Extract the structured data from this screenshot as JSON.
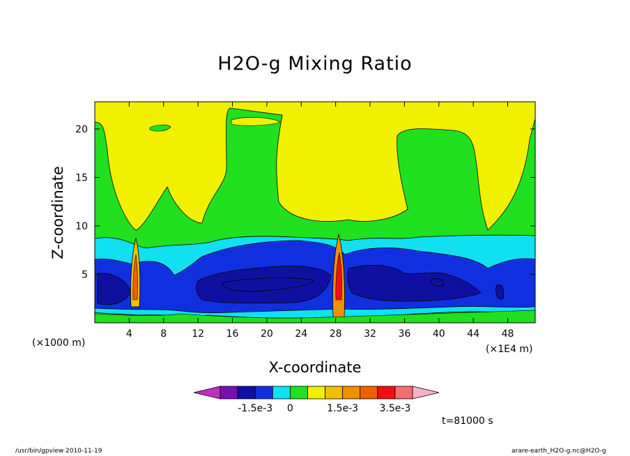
{
  "chart_data": {
    "type": "heatmap",
    "title": "H2O-g Mixing Ratio",
    "xlabel": "X-coordinate",
    "ylabel": "Z-coordinate",
    "x_unit_left": "(×1000 m)",
    "x_unit_right": "(×1E4 m)",
    "x_ticks": [
      4,
      8,
      12,
      16,
      20,
      24,
      28,
      32,
      36,
      40,
      44,
      48
    ],
    "y_ticks": [
      5,
      10,
      15,
      20
    ],
    "xlim": [
      0,
      51.2
    ],
    "ylim": [
      0,
      22.8
    ],
    "colorbar": {
      "colors": [
        "#c030c0",
        "#7a10b0",
        "#1010a0",
        "#1030e0",
        "#10e0f0",
        "#20e020",
        "#f0f000",
        "#f0c000",
        "#f09000",
        "#f06000",
        "#f01010",
        "#f07070",
        "#f8b0c8"
      ],
      "tick_labels": [
        "-1.5e-3",
        "0",
        "1.5e-3",
        "3.5e-3"
      ]
    },
    "time_label": "t=81000 s",
    "grid": false
  },
  "footer": {
    "left": "/usr/bin/gpview  2010-11-19",
    "right": "arare-earth_H2O-g.nc@H2O-g"
  }
}
